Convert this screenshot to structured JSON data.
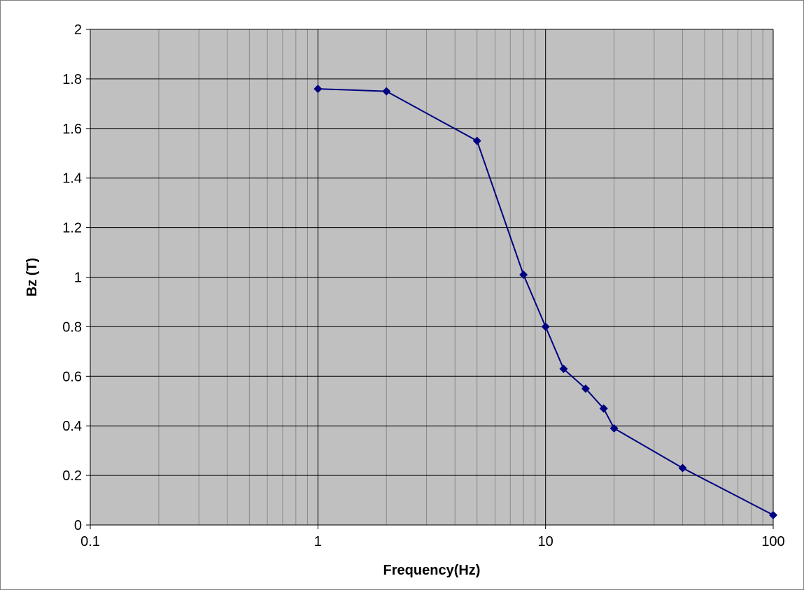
{
  "chart_data": {
    "type": "scatter",
    "title": "",
    "xlabel": "Frequency(Hz)",
    "ylabel": "Bz (T)",
    "x_scale": "log",
    "xlim": [
      0.1,
      100
    ],
    "ylim": [
      0,
      2
    ],
    "x_ticks": [
      0.1,
      1,
      10,
      100
    ],
    "x_tick_labels": [
      "0.1",
      "1",
      "10",
      "100"
    ],
    "y_ticks": [
      0,
      0.2,
      0.4,
      0.6,
      0.8,
      1,
      1.2,
      1.4,
      1.6,
      1.8,
      2
    ],
    "y_tick_labels": [
      "0",
      "0.2",
      "0.4",
      "0.6",
      "0.8",
      "1",
      "1.2",
      "1.4",
      "1.6",
      "1.8",
      "2"
    ],
    "grid": true,
    "legend": "none",
    "series": [
      {
        "x": [
          1,
          2,
          5,
          8,
          10,
          12,
          15,
          18,
          20,
          40,
          100
        ],
        "y": [
          1.76,
          1.75,
          1.55,
          1.01,
          0.8,
          0.63,
          0.55,
          0.47,
          0.39,
          0.23,
          0.04
        ],
        "color": "#000080",
        "marker": "diamond",
        "line": true
      }
    ],
    "plot_background": "#c0c0c0"
  }
}
